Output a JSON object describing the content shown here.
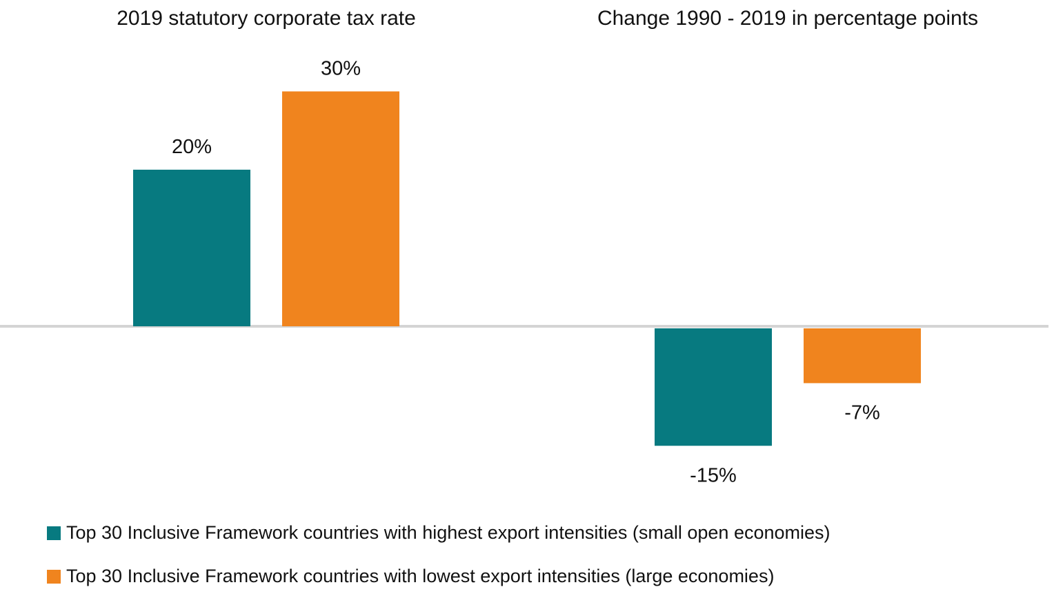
{
  "chart_data": {
    "type": "bar",
    "panels": [
      {
        "title": "2019 statutory corporate tax rate",
        "values": [
          20,
          30
        ],
        "labels": [
          "20%",
          "30%"
        ]
      },
      {
        "title": "Change 1990 - 2019 in percentage points",
        "values": [
          -15,
          -7
        ],
        "labels": [
          "-15%",
          "-7%"
        ]
      }
    ],
    "series": [
      {
        "name": "Top 30 Inclusive Framework countries with highest export intensities (small open economies)",
        "color": "#077a80"
      },
      {
        "name": "Top 30 Inclusive Framework countries with lowest export intensities (large economies)",
        "color": "#f0841e"
      }
    ],
    "ylim": [
      -16,
      31
    ],
    "axis_color": "#d4d4d4",
    "legend_position": "bottom-left",
    "grid": false
  }
}
